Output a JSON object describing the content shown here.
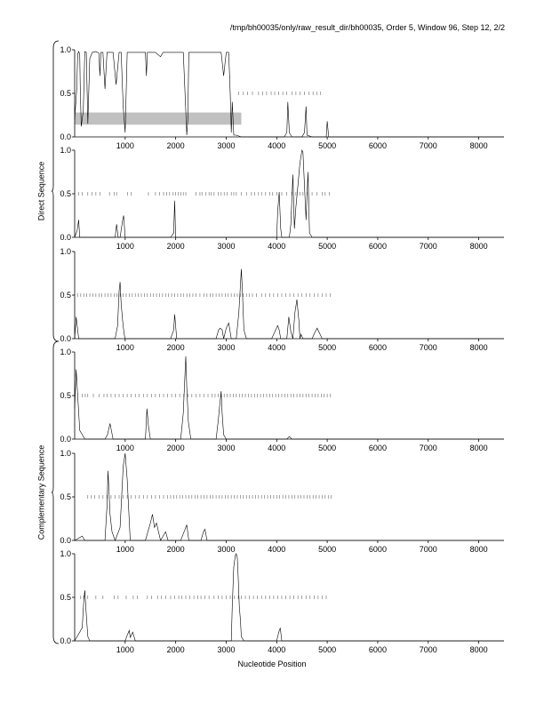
{
  "header": {
    "title": "/tmp/bh00035/only/raw_result_dir/bh00035, Order 5, Window 96, Step 12, 2/2"
  },
  "groups": {
    "direct_label": "Direct Sequence",
    "complementary_label": "Complementary Sequence"
  },
  "xlabel": "Nucleotide Position",
  "chart_data": [
    {
      "type": "line",
      "frame": 1,
      "strand": "direct",
      "xlim": [
        0,
        8500
      ],
      "ylim": [
        0,
        1.0
      ],
      "xticks": [
        "1000",
        "2000",
        "3000",
        "4000",
        "5000",
        "6000",
        "7000",
        "8000"
      ],
      "yticks": [
        "0.0",
        "0.5",
        "1.0"
      ],
      "shaded_region": {
        "x": [
          0,
          3300
        ],
        "y": [
          0.14,
          0.28
        ]
      },
      "marker_y": 0.5,
      "markers": [
        3250,
        3340,
        3420,
        3520,
        3640,
        3720,
        3800,
        3890,
        3960,
        4040,
        4120,
        4200,
        4300,
        4380,
        4460,
        4550,
        4640,
        4720,
        4800,
        4870
      ],
      "x": [
        0,
        40,
        60,
        80,
        100,
        110,
        130,
        170,
        200,
        230,
        260,
        300,
        350,
        420,
        480,
        500,
        520,
        560,
        600,
        640,
        700,
        760,
        820,
        880,
        920,
        960,
        1000,
        1040,
        1100,
        1200,
        1300,
        1400,
        1420,
        1440,
        1460,
        1500,
        1600,
        1700,
        1750,
        1800,
        1900,
        2000,
        2100,
        2150,
        2200,
        2220,
        2240,
        2260,
        2300,
        2400,
        2500,
        2600,
        2700,
        2800,
        2900,
        2950,
        3000,
        3050,
        3080,
        3100,
        3120,
        3150,
        3200,
        3300,
        3400,
        3600,
        3800,
        4000,
        4100,
        4150,
        4200,
        4220,
        4250,
        4300,
        4400,
        4500,
        4550,
        4580,
        4600,
        4700,
        4900,
        4980,
        5000,
        5030,
        5100,
        5500,
        6000,
        7000,
        8000,
        8500
      ],
      "y": [
        0.2,
        0.55,
        0.95,
        0.98,
        0.95,
        0.55,
        0.12,
        0.3,
        0.98,
        0.97,
        0.15,
        0.9,
        0.97,
        0.98,
        0.96,
        0.7,
        0.97,
        0.97,
        0.55,
        0.97,
        0.97,
        0.97,
        0.6,
        0.97,
        0.97,
        0.35,
        0.05,
        0.97,
        0.97,
        0.97,
        0.97,
        0.97,
        0.7,
        0.97,
        0.97,
        0.97,
        0.97,
        0.92,
        0.97,
        0.97,
        0.97,
        0.97,
        0.97,
        0.97,
        0.3,
        0.02,
        0.2,
        0.97,
        0.97,
        0.97,
        0.97,
        0.97,
        0.97,
        0.97,
        0.97,
        0.7,
        0.97,
        0.97,
        0.5,
        0.05,
        0.4,
        0.02,
        0.02,
        0.0,
        0.0,
        0.0,
        0.0,
        0.0,
        0.0,
        0.0,
        0.05,
        0.4,
        0.05,
        0.0,
        0.0,
        0.0,
        0.05,
        0.35,
        0.02,
        0.0,
        0.0,
        0.0,
        0.18,
        0.0,
        0.0,
        0.0,
        0.0,
        0.0,
        0.0,
        0.0
      ]
    },
    {
      "type": "line",
      "frame": 2,
      "strand": "direct",
      "xlim": [
        0,
        8500
      ],
      "ylim": [
        0,
        1.0
      ],
      "xticks": [
        "1000",
        "2000",
        "3000",
        "4000",
        "5000",
        "6000",
        "7000",
        "8000"
      ],
      "yticks": [
        "0.0",
        "0.5",
        "1.0"
      ],
      "marker_y": 0.5,
      "markers": [
        80,
        150,
        260,
        340,
        420,
        500,
        690,
        780,
        830,
        1050,
        1120,
        1460,
        1600,
        1680,
        1760,
        1820,
        1880,
        1950,
        2000,
        2050,
        2100,
        2150,
        2200,
        2400,
        2480,
        2520,
        2600,
        2660,
        2700,
        2760,
        2840,
        2900,
        2960,
        3020,
        3100,
        3150,
        3200,
        3300,
        3400,
        3500,
        3560,
        3640,
        3700,
        3780,
        3860,
        3920,
        4000,
        4100,
        4200,
        4300,
        4380,
        4460,
        4520,
        4600,
        4700,
        4800,
        4900,
        4960,
        5040
      ],
      "x": [
        0,
        50,
        80,
        100,
        700,
        800,
        830,
        860,
        900,
        950,
        970,
        1000,
        1100,
        1900,
        1960,
        1980,
        2000,
        2400,
        3000,
        4000,
        4020,
        4050,
        4080,
        4100,
        4250,
        4280,
        4320,
        4350,
        4380,
        4420,
        4460,
        4500,
        4520,
        4550,
        4580,
        4620,
        4650,
        4700,
        4800,
        5000,
        8500
      ],
      "y": [
        0.0,
        0.08,
        0.2,
        0.0,
        0.0,
        0.0,
        0.15,
        0.0,
        0.0,
        0.2,
        0.25,
        0.0,
        0.0,
        0.0,
        0.05,
        0.42,
        0.0,
        0.0,
        0.0,
        0.0,
        0.3,
        0.52,
        0.1,
        0.0,
        0.0,
        0.15,
        0.72,
        0.1,
        0.35,
        0.6,
        0.85,
        1.0,
        0.98,
        0.6,
        0.2,
        0.75,
        0.05,
        0.0,
        0.0,
        0.0,
        0.0
      ]
    },
    {
      "type": "line",
      "frame": 3,
      "strand": "direct",
      "xlim": [
        0,
        8500
      ],
      "ylim": [
        0,
        1.0
      ],
      "xticks": [
        "1000",
        "2000",
        "3000",
        "4000",
        "5000",
        "6000",
        "7000",
        "8000"
      ],
      "yticks": [
        "0.0",
        "0.5",
        "1.0"
      ],
      "marker_y": 0.5,
      "markers": [
        60,
        120,
        180,
        240,
        300,
        360,
        420,
        480,
        540,
        600,
        660,
        720,
        780,
        840,
        900,
        960,
        1020,
        1080,
        1140,
        1200,
        1260,
        1320,
        1380,
        1440,
        1500,
        1560,
        1620,
        1680,
        1740,
        1800,
        1860,
        1920,
        1980,
        2040,
        2100,
        2160,
        2220,
        2280,
        2340,
        2400,
        2480,
        2560,
        2620,
        2680,
        2740,
        2800,
        2860,
        2920,
        2980,
        3040,
        3100,
        3160,
        3220,
        3280,
        3340,
        3400,
        3460,
        3520,
        3600,
        3700,
        3780,
        3860,
        3940,
        4020,
        4100,
        4180,
        4260,
        4340,
        4420,
        4500,
        4580,
        4660,
        4740,
        4820,
        4900,
        4980,
        5060
      ],
      "x": [
        0,
        30,
        80,
        800,
        850,
        880,
        900,
        920,
        950,
        980,
        1000,
        1900,
        1960,
        1980,
        2020,
        2800,
        2850,
        2880,
        2920,
        2950,
        3000,
        3050,
        3100,
        3200,
        3250,
        3280,
        3300,
        3320,
        3350,
        3400,
        3900,
        4020,
        4050,
        4080,
        4200,
        4240,
        4280,
        4320,
        4360,
        4400,
        4440,
        4460,
        4480,
        4520,
        4700,
        4760,
        4800,
        4900,
        5000,
        8500
      ],
      "y": [
        0.0,
        0.25,
        0.0,
        0.0,
        0.15,
        0.55,
        0.65,
        0.4,
        0.2,
        0.05,
        0.0,
        0.0,
        0.1,
        0.28,
        0.0,
        0.0,
        0.1,
        0.12,
        0.1,
        0.0,
        0.12,
        0.18,
        0.0,
        0.0,
        0.3,
        0.6,
        0.8,
        0.55,
        0.1,
        0.0,
        0.0,
        0.15,
        0.1,
        0.0,
        0.0,
        0.25,
        0.08,
        0.0,
        0.3,
        0.45,
        0.2,
        0.0,
        0.05,
        0.0,
        0.0,
        0.08,
        0.12,
        0.0,
        0.0,
        0.0
      ]
    },
    {
      "type": "line",
      "frame": 1,
      "strand": "complementary",
      "xlim": [
        0,
        8500
      ],
      "ylim": [
        0,
        1.0
      ],
      "xticks": [
        "1000",
        "2000",
        "3000",
        "4000",
        "5000",
        "6000",
        "7000",
        "8000"
      ],
      "yticks": [
        "0.0",
        "0.5",
        "1.0"
      ],
      "marker_y": 0.5,
      "markers": [
        150,
        210,
        260,
        370,
        480,
        580,
        640,
        720,
        800,
        880,
        960,
        1040,
        1120,
        1200,
        1280,
        1360,
        1440,
        1520,
        1600,
        1680,
        1760,
        1840,
        1920,
        2000,
        2080,
        2160,
        2240,
        2320,
        2400,
        2480,
        2560,
        2640,
        2720,
        2780,
        2840,
        2900,
        2960,
        3020,
        3080,
        3140,
        3200,
        3260,
        3320,
        3380,
        3440,
        3500,
        3560,
        3620,
        3680,
        3740,
        3800,
        3860,
        3920,
        3980,
        4040,
        4100,
        4160,
        4220,
        4280,
        4340,
        4400,
        4460,
        4520,
        4580,
        4640,
        4700,
        4760,
        4820,
        4880,
        4940,
        5000,
        5060
      ],
      "x": [
        0,
        30,
        60,
        100,
        200,
        600,
        650,
        700,
        760,
        800,
        1400,
        1430,
        1460,
        1500,
        2100,
        2150,
        2180,
        2200,
        2220,
        2250,
        2300,
        2800,
        2840,
        2870,
        2900,
        2920,
        2950,
        3000,
        3300,
        4200,
        4250,
        4300,
        5000,
        8500
      ],
      "y": [
        0.35,
        0.8,
        0.5,
        0.1,
        0.0,
        0.0,
        0.05,
        0.18,
        0.0,
        0.0,
        0.0,
        0.35,
        0.15,
        0.0,
        0.0,
        0.3,
        0.7,
        0.95,
        0.6,
        0.2,
        0.0,
        0.0,
        0.2,
        0.38,
        0.55,
        0.3,
        0.05,
        0.0,
        0.0,
        0.0,
        0.03,
        0.0,
        0.0,
        0.0
      ]
    },
    {
      "type": "line",
      "frame": 2,
      "strand": "complementary",
      "xlim": [
        0,
        8500
      ],
      "ylim": [
        0,
        1.0
      ],
      "xticks": [
        "1000",
        "2000",
        "3000",
        "4000",
        "5000",
        "6000",
        "7000",
        "8000"
      ],
      "yticks": [
        "0.0",
        "0.5",
        "1.0"
      ],
      "marker_y": 0.5,
      "markers": [
        260,
        330,
        400,
        480,
        560,
        640,
        720,
        800,
        880,
        960,
        1040,
        1120,
        1200,
        1280,
        1360,
        1440,
        1520,
        1600,
        1680,
        1760,
        1840,
        1900,
        1960,
        2020,
        2080,
        2140,
        2200,
        2260,
        2320,
        2380,
        2440,
        2500,
        2560,
        2620,
        2680,
        2740,
        2800,
        2860,
        2920,
        2980,
        3040,
        3100,
        3160,
        3220,
        3280,
        3340,
        3400,
        3460,
        3520,
        3580,
        3640,
        3700,
        3760,
        3820,
        3880,
        3940,
        4000,
        4060,
        4120,
        4180,
        4240,
        4300,
        4360,
        4420,
        4480,
        4540,
        4600,
        4660,
        4720,
        4780,
        4840,
        4900,
        4960,
        5020,
        5080
      ],
      "x": [
        0,
        150,
        200,
        300,
        600,
        640,
        660,
        700,
        740,
        800,
        900,
        960,
        1000,
        1040,
        1100,
        1400,
        1500,
        1540,
        1580,
        1620,
        1660,
        1700,
        1800,
        1850,
        1900,
        2100,
        2180,
        2220,
        2260,
        2500,
        2550,
        2580,
        2620,
        3000,
        3200,
        4000,
        5000,
        8500
      ],
      "y": [
        0.0,
        0.05,
        0.0,
        0.0,
        0.0,
        0.4,
        0.8,
        0.3,
        0.1,
        0.0,
        0.15,
        0.85,
        1.0,
        0.7,
        0.0,
        0.0,
        0.2,
        0.3,
        0.15,
        0.2,
        0.1,
        0.0,
        0.1,
        0.0,
        0.0,
        0.0,
        0.12,
        0.18,
        0.0,
        0.0,
        0.1,
        0.13,
        0.0,
        0.0,
        0.0,
        0.0,
        0.0,
        0.0
      ]
    },
    {
      "type": "line",
      "frame": 3,
      "strand": "complementary",
      "xlim": [
        0,
        8500
      ],
      "ylim": [
        0,
        1.0
      ],
      "xticks": [
        "1000",
        "2000",
        "3000",
        "4000",
        "5000",
        "6000",
        "7000",
        "8000"
      ],
      "yticks": [
        "0.0",
        "0.5",
        "1.0"
      ],
      "marker_y": 0.5,
      "markers": [
        120,
        180,
        260,
        420,
        560,
        780,
        860,
        1020,
        1160,
        1240,
        1440,
        1520,
        1640,
        1720,
        1800,
        1900,
        1980,
        2060,
        2120,
        2200,
        2280,
        2360,
        2440,
        2500,
        2580,
        2660,
        2760,
        2840,
        2920,
        3000,
        3080,
        3160,
        3240,
        3300,
        3380,
        3460,
        3540,
        3620,
        3700,
        3780,
        3860,
        3940,
        4020,
        4100,
        4180,
        4260,
        4340,
        4420,
        4500,
        4580,
        4660,
        4740,
        4820,
        4900,
        4980
      ],
      "x": [
        0,
        150,
        180,
        200,
        230,
        260,
        300,
        1000,
        1050,
        1080,
        1100,
        1150,
        1200,
        3000,
        3100,
        3120,
        3150,
        3180,
        3200,
        3220,
        3240,
        3260,
        3280,
        3300,
        3350,
        4000,
        4040,
        4070,
        4100,
        5000,
        8500
      ],
      "y": [
        0.0,
        0.15,
        0.45,
        0.58,
        0.3,
        0.05,
        0.0,
        0.0,
        0.08,
        0.12,
        0.04,
        0.1,
        0.0,
        0.0,
        0.0,
        0.4,
        0.85,
        0.98,
        1.0,
        0.95,
        0.7,
        0.4,
        0.25,
        0.05,
        0.0,
        0.0,
        0.1,
        0.15,
        0.0,
        0.0,
        0.0
      ]
    }
  ]
}
